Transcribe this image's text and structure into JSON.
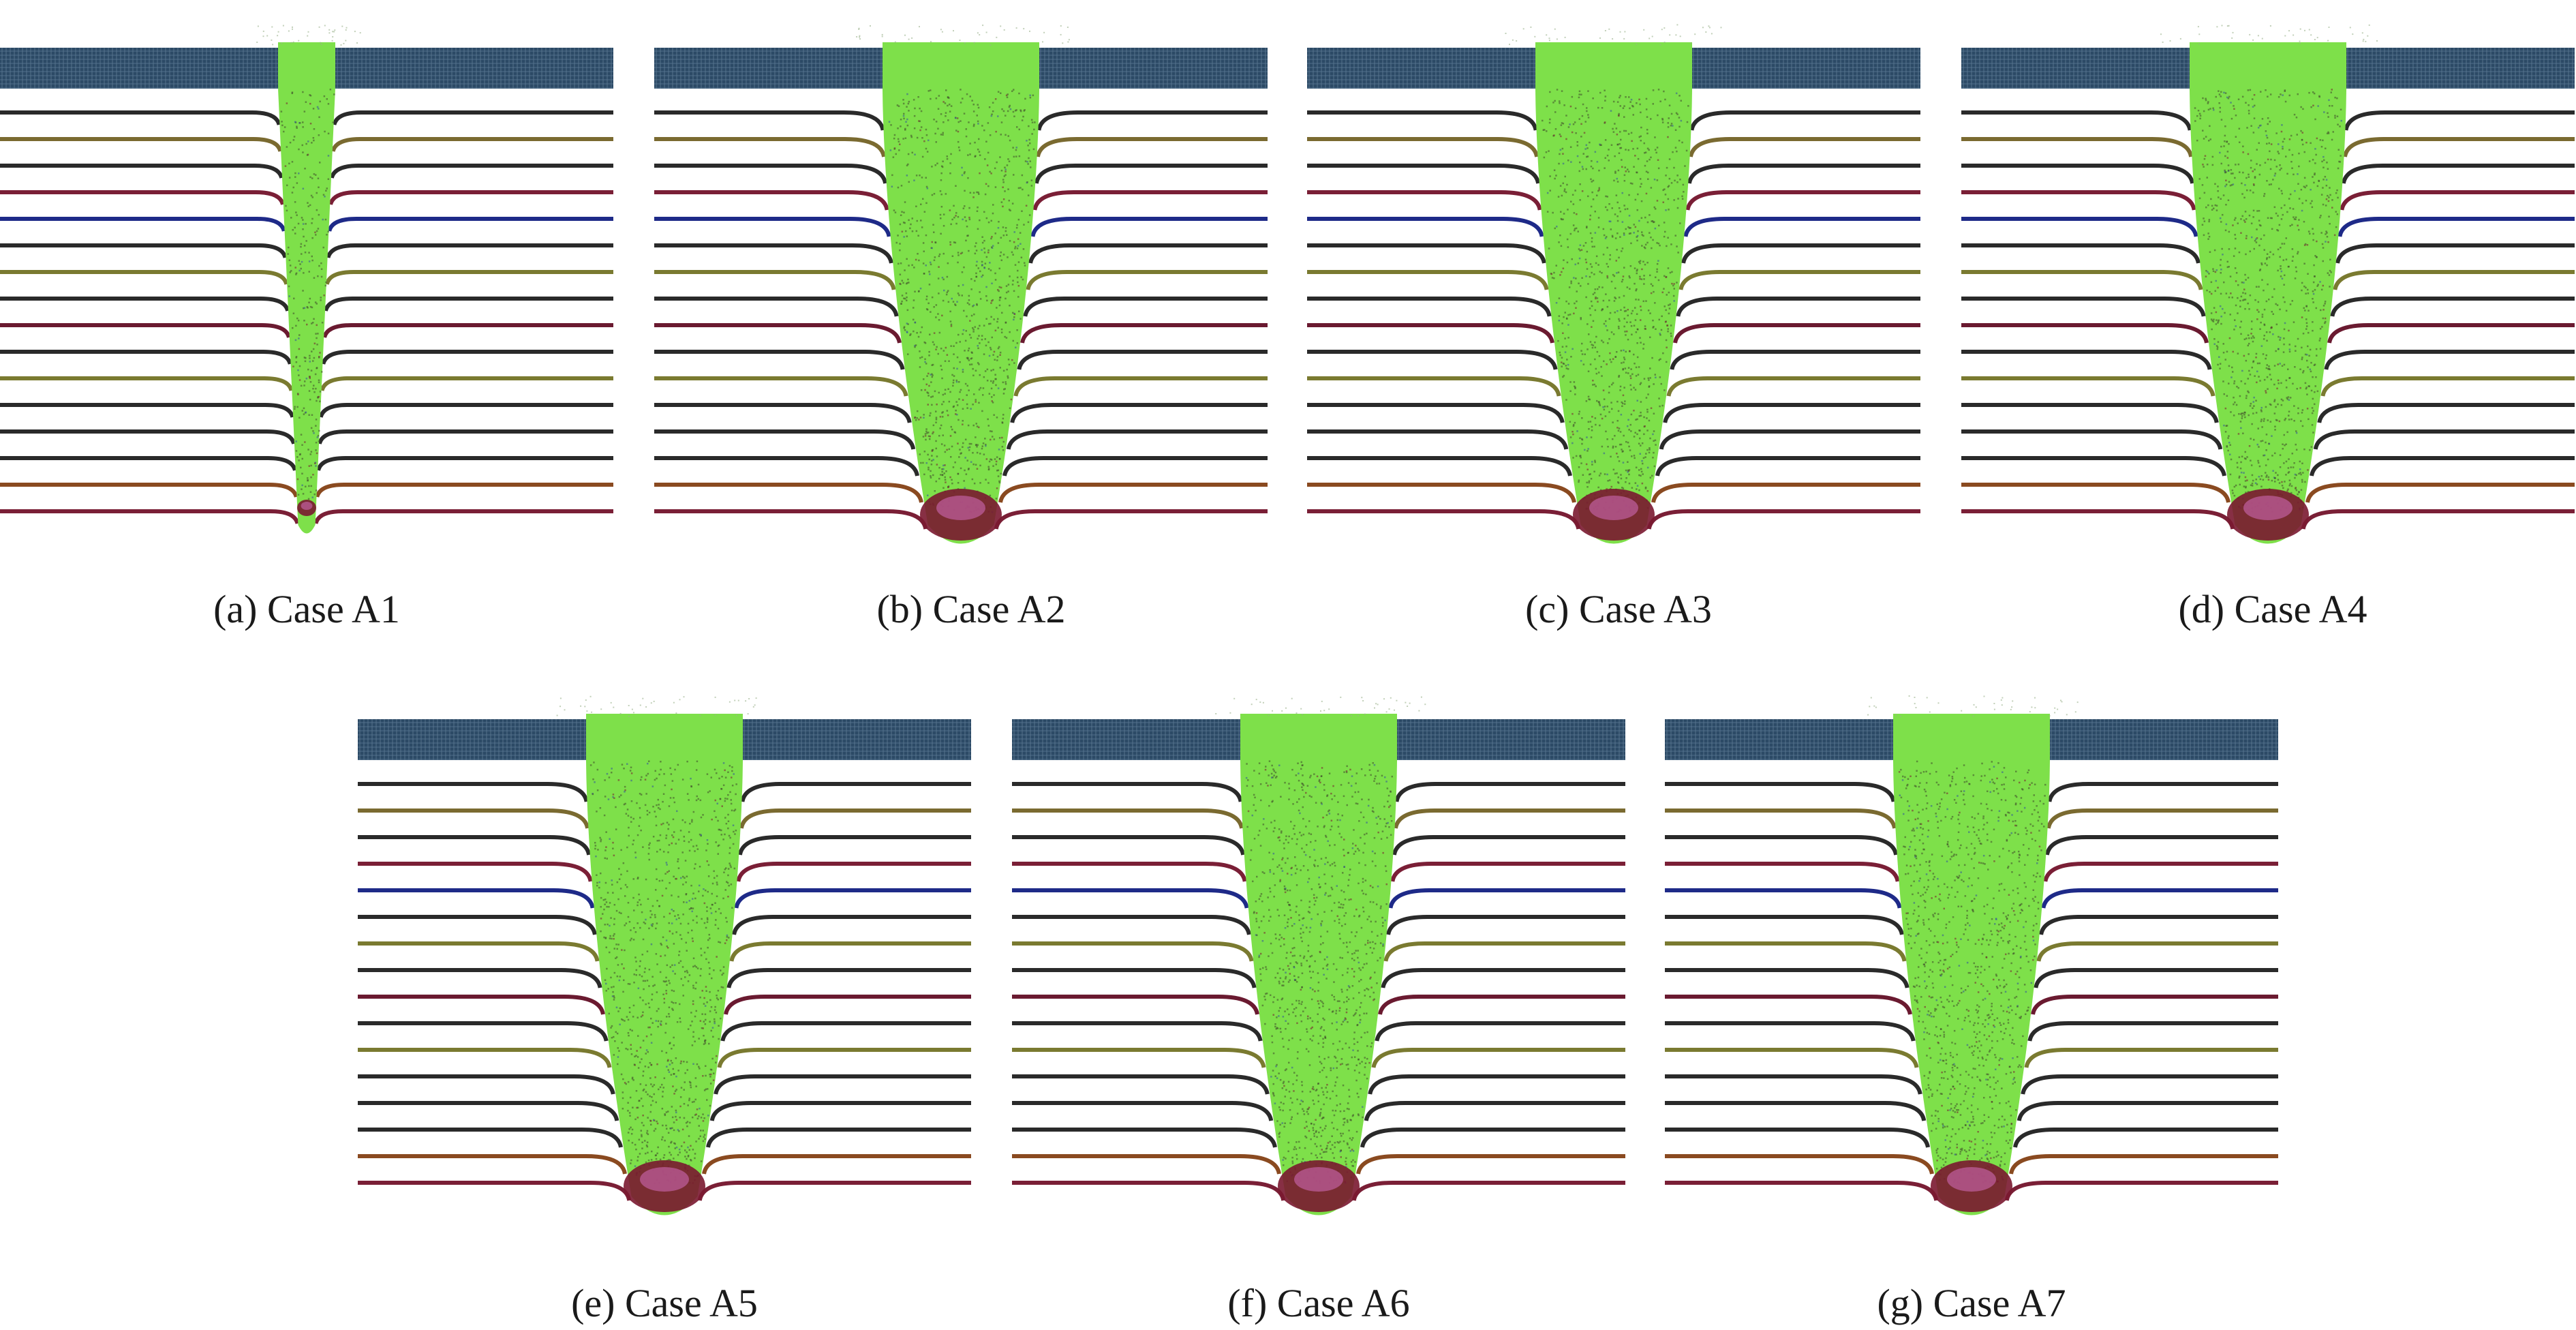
{
  "figure": {
    "panels": [
      {
        "id": "a",
        "caption": "(a) Case A1",
        "crater": "narrow"
      },
      {
        "id": "b",
        "caption": "(b) Case A2",
        "crater": "wide"
      },
      {
        "id": "c",
        "caption": "(c) Case A3",
        "crater": "wide"
      },
      {
        "id": "d",
        "caption": "(d) Case A4",
        "crater": "wide"
      },
      {
        "id": "e",
        "caption": "(e) Case A5",
        "crater": "wide"
      },
      {
        "id": "f",
        "caption": "(f) Case A6",
        "crater": "wide"
      },
      {
        "id": "g",
        "caption": "(g) Case A7",
        "crater": "wide"
      }
    ]
  },
  "colors": {
    "top_plate": "#2c4a66",
    "plug": "#7ee04a",
    "debris_dark": "#3e4a2a",
    "tip": "#7a1830",
    "tip_pink": "#c060a0",
    "layers": [
      "#2a2a2a",
      "#7a6a30",
      "#2a2a2a",
      "#7a1f36",
      "#1e2a88",
      "#2a2a2a",
      "#7a7a30",
      "#2a2a2a",
      "#6a1a30",
      "#2a2a2a",
      "#7a7a30",
      "#2a2a2a",
      "#2a2a2a",
      "#2a2a2a",
      "#8a4a20",
      "#7a1f36"
    ]
  }
}
